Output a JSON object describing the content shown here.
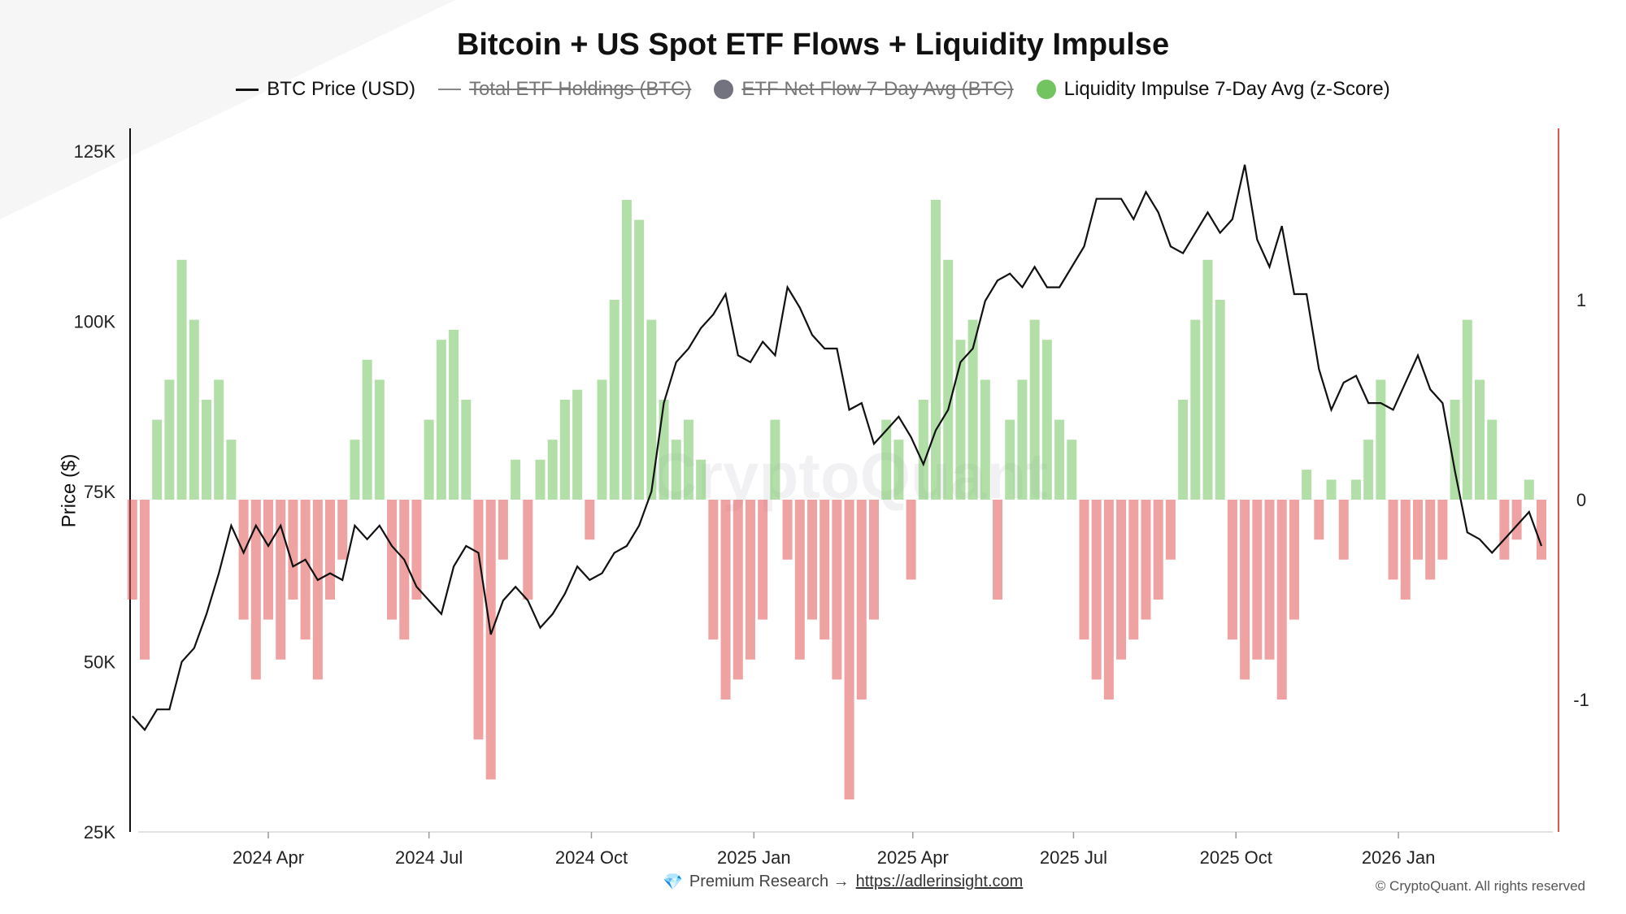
{
  "chart_data": {
    "type": "bar+line",
    "title": "Bitcoin + US Spot ETF Flows + Liquidity Impulse",
    "ylabel": "Price ($)",
    "ylim": [
      25000,
      125000
    ],
    "y2lim": [
      -1.6,
      1.8
    ],
    "y_ticks": [
      {
        "v": 25000,
        "label": "25K"
      },
      {
        "v": 50000,
        "label": "50K"
      },
      {
        "v": 75000,
        "label": "75K"
      },
      {
        "v": 100000,
        "label": "100K"
      },
      {
        "v": 125000,
        "label": "125K"
      }
    ],
    "y2_ticks": [
      {
        "v": -1,
        "label": "-1"
      },
      {
        "v": 0,
        "label": "0"
      },
      {
        "v": 1,
        "label": "1"
      }
    ],
    "x_ticks": [
      {
        "date": "2024-04-01",
        "label": "2024 Apr"
      },
      {
        "date": "2024-07-01",
        "label": "2024 Jul"
      },
      {
        "date": "2024-10-01",
        "label": "2024 Oct"
      },
      {
        "date": "2025-01-01",
        "label": "2025 Jan"
      },
      {
        "date": "2025-04-01",
        "label": "2025 Apr"
      },
      {
        "date": "2025-07-01",
        "label": "2025 Jul"
      },
      {
        "date": "2025-10-01",
        "label": "2025 Oct"
      },
      {
        "date": "2026-01-01",
        "label": "2026 Jan"
      }
    ],
    "x_start": "2024-01-15",
    "x_step_days": 7,
    "legend": [
      {
        "label": "BTC Price (USD)",
        "kind": "line",
        "color": "#111111",
        "hidden": false
      },
      {
        "label": "Total ETF Holdings (BTC)",
        "kind": "line",
        "color": "#888888",
        "hidden": true
      },
      {
        "label": "ETF Net Flow 7-Day Avg (BTC)",
        "kind": "dot",
        "color": "#73727f",
        "hidden": true
      },
      {
        "label": "Liquidity Impulse 7-Day Avg (z-Score)",
        "kind": "dot",
        "color": "#72c461",
        "hidden": false
      }
    ],
    "series": [
      {
        "name": "BTC Price (USD)",
        "values": [
          42000,
          40000,
          43000,
          43000,
          50000,
          52000,
          57000,
          63000,
          70000,
          66000,
          70000,
          67000,
          70000,
          64000,
          65000,
          62000,
          63000,
          62000,
          70000,
          68000,
          70000,
          67000,
          65000,
          61000,
          59000,
          57000,
          64000,
          67000,
          66000,
          54000,
          59000,
          61000,
          59000,
          55000,
          57000,
          60000,
          64000,
          62000,
          63000,
          66000,
          67000,
          70000,
          75000,
          88000,
          94000,
          96000,
          99000,
          101000,
          104000,
          95000,
          94000,
          97000,
          95000,
          105000,
          102000,
          98000,
          96000,
          96000,
          87000,
          88000,
          82000,
          84000,
          86000,
          83000,
          79000,
          84000,
          87000,
          94000,
          96000,
          103000,
          106000,
          107000,
          105000,
          108000,
          105000,
          105000,
          108000,
          111000,
          118000,
          118000,
          118000,
          115000,
          119000,
          116000,
          111000,
          110000,
          113000,
          116000,
          113000,
          115000,
          123000,
          112000,
          108000,
          114000,
          104000,
          104000,
          93000,
          87000,
          91000,
          92000,
          88000,
          88000,
          87000,
          91000,
          95000,
          90000,
          88000,
          78000,
          69000,
          68000,
          66000,
          68000,
          70000,
          72000,
          67000
        ]
      },
      {
        "name": "Liquidity Impulse 7-Day Avg (z-Score)",
        "values": [
          -0.5,
          -0.8,
          0.4,
          0.6,
          1.2,
          0.9,
          0.5,
          0.6,
          0.3,
          -0.6,
          -0.9,
          -0.6,
          -0.8,
          -0.5,
          -0.7,
          -0.9,
          -0.5,
          -0.3,
          0.3,
          0.7,
          0.6,
          -0.6,
          -0.7,
          -0.5,
          0.4,
          0.8,
          0.85,
          0.5,
          -1.2,
          -1.4,
          -0.3,
          0.2,
          -0.5,
          0.2,
          0.3,
          0.5,
          0.55,
          -0.2,
          0.6,
          1.0,
          1.5,
          1.4,
          0.9,
          0.5,
          0.3,
          0.4,
          0.2,
          -0.7,
          -1.0,
          -0.9,
          -0.8,
          -0.6,
          0.4,
          -0.3,
          -0.8,
          -0.6,
          -0.7,
          -0.9,
          -1.5,
          -1.0,
          -0.6,
          0.4,
          0.3,
          -0.4,
          0.5,
          1.5,
          1.2,
          0.8,
          0.9,
          0.6,
          -0.5,
          0.4,
          0.6,
          0.9,
          0.8,
          0.4,
          0.3,
          -0.7,
          -0.9,
          -1.0,
          -0.8,
          -0.7,
          -0.6,
          -0.5,
          -0.3,
          0.5,
          0.9,
          1.2,
          1.0,
          -0.7,
          -0.9,
          -0.8,
          -0.8,
          -1.0,
          -0.6,
          0.15,
          -0.2,
          0.1,
          -0.3,
          0.1,
          0.3,
          0.6,
          -0.4,
          -0.5,
          -0.3,
          -0.4,
          -0.3,
          0.5,
          0.9,
          0.6,
          0.4,
          -0.3,
          -0.2,
          0.1,
          -0.3
        ]
      }
    ],
    "colors": {
      "positive": "#72c461",
      "negative": "#e05555",
      "axis_right": "#e05555"
    }
  },
  "watermark": "CryptoQuant",
  "footer": {
    "icon": "gem-icon",
    "text": "Premium Research →",
    "link": "https://adlerinsight.com",
    "copyright": "© CryptoQuant. All rights reserved"
  }
}
